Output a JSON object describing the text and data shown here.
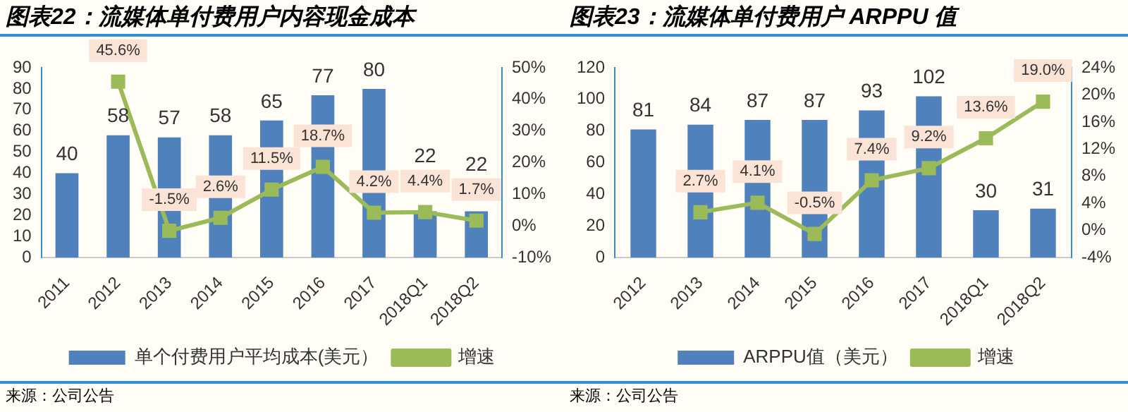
{
  "chart_data": [
    {
      "type": "bar",
      "title": "图表22：流媒体单付费用户内容现金成本",
      "categories": [
        "2011",
        "2012",
        "2013",
        "2014",
        "2015",
        "2016",
        "2017",
        "2018Q1",
        "2018Q2"
      ],
      "series": [
        {
          "name": "单个付费用户平均成本(美元）",
          "color": "#4f81bd",
          "values": [
            40,
            58,
            57,
            58,
            65,
            77,
            80,
            22,
            22
          ],
          "value_labels": [
            "40",
            "58",
            "57",
            "58",
            "65",
            "77",
            "80",
            "22",
            "22"
          ]
        },
        {
          "name": "增速",
          "type": "line",
          "axis": "y2",
          "color": "#9bbb59",
          "values": [
            null,
            45.6,
            -1.5,
            2.6,
            11.5,
            18.7,
            4.2,
            4.4,
            1.7
          ],
          "value_labels": [
            null,
            "45.6%",
            "-1.5%",
            "2.6%",
            "11.5%",
            "18.7%",
            "4.2%",
            "4.4%",
            "1.7%"
          ]
        }
      ],
      "ylim": [
        0,
        90
      ],
      "yticks": [
        0,
        10,
        20,
        30,
        40,
        50,
        60,
        70,
        80,
        90
      ],
      "y2lim": [
        -10,
        50
      ],
      "y2ticks": [
        {
          "value": -10,
          "label": "-10%"
        },
        {
          "value": 0,
          "label": "0%"
        },
        {
          "value": 10,
          "label": "10%"
        },
        {
          "value": 20,
          "label": "20%"
        },
        {
          "value": 30,
          "label": "30%"
        },
        {
          "value": 40,
          "label": "40%"
        },
        {
          "value": 50,
          "label": "50%"
        }
      ],
      "grid": false,
      "legend": "bottom",
      "marker": "square",
      "line_style": "solid",
      "annotations": [
        "来源：公司公告"
      ]
    },
    {
      "type": "bar",
      "title": "图表23：流媒体单付费用户 ARPPU 值",
      "categories": [
        "2012",
        "2013",
        "2014",
        "2015",
        "2016",
        "2017",
        "2018Q1",
        "2018Q2"
      ],
      "series": [
        {
          "name": "ARPPU值（美元）",
          "color": "#4f81bd",
          "values": [
            81,
            84,
            87,
            87,
            93,
            102,
            30,
            31
          ],
          "value_labels": [
            "81",
            "84",
            "87",
            "87",
            "93",
            "102",
            "30",
            "31"
          ]
        },
        {
          "name": "增速",
          "type": "line",
          "axis": "y2",
          "color": "#9bbb59",
          "values": [
            null,
            2.7,
            4.1,
            -0.5,
            7.4,
            9.2,
            13.6,
            19.0
          ],
          "value_labels": [
            null,
            "2.7%",
            "4.1%",
            "-0.5%",
            "7.4%",
            "9.2%",
            "13.6%",
            "19.0%"
          ]
        }
      ],
      "ylim": [
        0,
        120
      ],
      "yticks": [
        0,
        20,
        40,
        60,
        80,
        100,
        120
      ],
      "y2lim": [
        -4,
        24
      ],
      "y2ticks": [
        {
          "value": -4,
          "label": "-4%"
        },
        {
          "value": 0,
          "label": "0%"
        },
        {
          "value": 4,
          "label": "4%"
        },
        {
          "value": 8,
          "label": "8%"
        },
        {
          "value": 12,
          "label": "12%"
        },
        {
          "value": 16,
          "label": "16%"
        },
        {
          "value": 20,
          "label": "20%"
        },
        {
          "value": 24,
          "label": "24%"
        }
      ],
      "grid": false,
      "legend": "bottom",
      "marker": "square",
      "line_style": "solid",
      "annotations": [
        "来源：公司公告"
      ]
    }
  ]
}
